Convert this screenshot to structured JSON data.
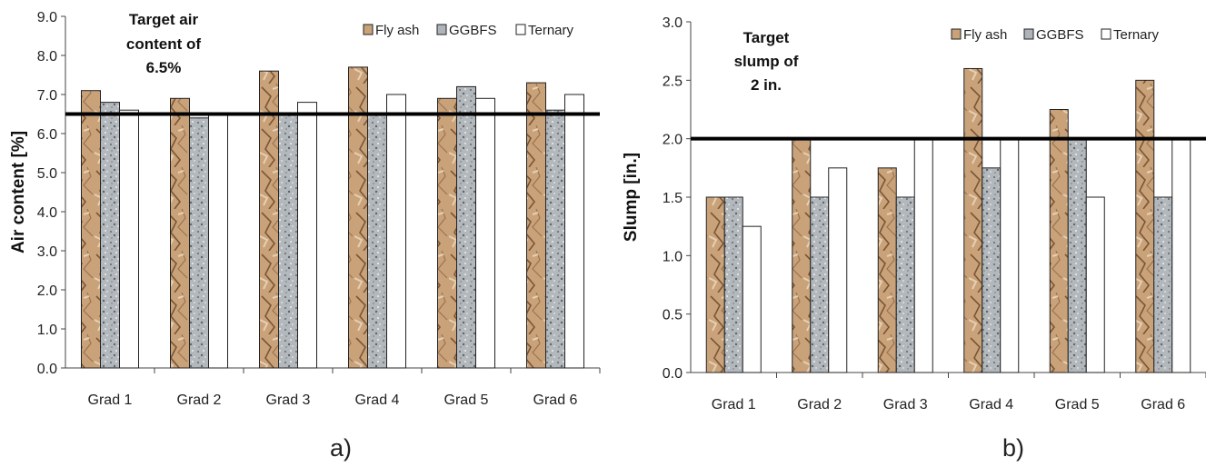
{
  "chart_data": [
    {
      "type": "bar",
      "ylabel": "Air content  [%]",
      "ylim": [
        0,
        9
      ],
      "yticks": [
        "0.0",
        "1.0",
        "2.0",
        "3.0",
        "4.0",
        "5.0",
        "6.0",
        "7.0",
        "8.0",
        "9.0"
      ],
      "categories": [
        "Grad 1",
        "Grad 2",
        "Grad 3",
        "Grad 4",
        "Grad 5",
        "Grad 6"
      ],
      "series": [
        {
          "name": "Fly ash",
          "values": [
            7.1,
            6.9,
            7.6,
            7.7,
            6.9,
            7.3
          ]
        },
        {
          "name": "GGBFS",
          "values": [
            6.8,
            6.4,
            6.5,
            6.5,
            7.2,
            6.6
          ]
        },
        {
          "name": "Ternary",
          "values": [
            6.6,
            6.5,
            6.8,
            7.0,
            6.9,
            7.0
          ]
        }
      ],
      "target": 6.5,
      "annotation": [
        "Target air",
        "content  of",
        "6.5%"
      ],
      "legend_position": "top-right",
      "caption": "a)"
    },
    {
      "type": "bar",
      "ylabel": "Slump  [in.]",
      "ylim": [
        0,
        3
      ],
      "yticks": [
        "0.0",
        "0.5",
        "1.0",
        "1.5",
        "2.0",
        "2.5",
        "3.0"
      ],
      "categories": [
        "Grad 1",
        "Grad 2",
        "Grad 3",
        "Grad 4",
        "Grad 5",
        "Grad 6"
      ],
      "series": [
        {
          "name": "Fly ash",
          "values": [
            1.5,
            2.0,
            1.75,
            2.6,
            2.25,
            2.5
          ]
        },
        {
          "name": "GGBFS",
          "values": [
            1.5,
            1.5,
            1.5,
            1.75,
            2.0,
            1.5
          ]
        },
        {
          "name": "Ternary",
          "values": [
            1.25,
            1.75,
            2.0,
            2.0,
            1.5,
            2.0
          ]
        }
      ],
      "target": 2.0,
      "annotation": [
        "Target",
        "slump of",
        "2 in."
      ],
      "legend_position": "top-right",
      "caption": "b)"
    }
  ],
  "colors": {
    "fly_ash": "#c9a27a",
    "ggbfs": "#aeb4ba",
    "ternary": "#ffffff",
    "target_line": "#000000"
  }
}
